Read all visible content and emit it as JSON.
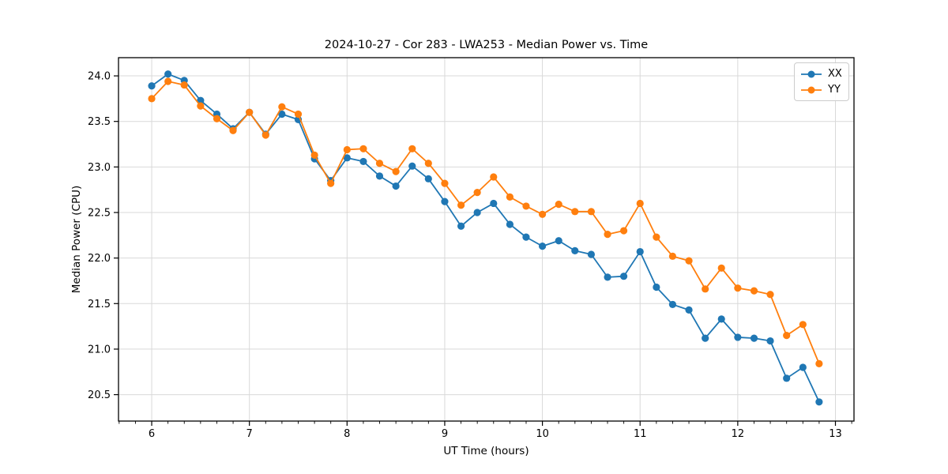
{
  "chart_data": {
    "type": "line",
    "title": "2024-10-27 - Cor 283 - LWA253 - Median Power vs. Time",
    "xlabel": "UT Time (hours)",
    "ylabel": "Median Power (CPU)",
    "xlim": [
      5.66,
      13.19
    ],
    "ylim": [
      20.21,
      24.2
    ],
    "xticks": [
      6,
      7,
      8,
      9,
      10,
      11,
      12,
      13
    ],
    "yticks": [
      20.5,
      21.0,
      21.5,
      22.0,
      22.5,
      23.0,
      23.5,
      24.0
    ],
    "x_minor_step": 0.1666667,
    "grid": true,
    "legend_position": "upper right",
    "x": [
      6.0,
      6.167,
      6.333,
      6.5,
      6.667,
      6.833,
      7.0,
      7.167,
      7.333,
      7.5,
      7.667,
      7.833,
      8.0,
      8.167,
      8.333,
      8.5,
      8.667,
      8.833,
      9.0,
      9.167,
      9.333,
      9.5,
      9.667,
      9.833,
      10.0,
      10.167,
      10.333,
      10.5,
      10.667,
      10.833,
      11.0,
      11.167,
      11.333,
      11.5,
      11.667,
      11.833,
      12.0,
      12.167,
      12.333,
      12.5,
      12.667,
      12.833
    ],
    "series": [
      {
        "name": "XX",
        "color": "#1f77b4",
        "values": [
          23.89,
          24.02,
          23.95,
          23.73,
          23.58,
          23.42,
          23.6,
          23.36,
          23.58,
          23.52,
          23.09,
          22.85,
          23.1,
          23.06,
          22.9,
          22.79,
          23.01,
          22.87,
          22.62,
          22.35,
          22.5,
          22.6,
          22.37,
          22.23,
          22.13,
          22.19,
          22.08,
          22.04,
          21.79,
          21.8,
          22.07,
          21.68,
          21.49,
          21.43,
          21.12,
          21.33,
          21.13,
          21.12,
          21.09,
          20.68,
          20.8,
          20.42
        ]
      },
      {
        "name": "YY",
        "color": "#ff7f0e",
        "values": [
          23.75,
          23.94,
          23.9,
          23.67,
          23.53,
          23.4,
          23.6,
          23.35,
          23.66,
          23.58,
          23.13,
          22.82,
          23.19,
          23.2,
          23.04,
          22.95,
          23.2,
          23.04,
          22.82,
          22.58,
          22.72,
          22.89,
          22.67,
          22.57,
          22.48,
          22.59,
          22.51,
          22.51,
          22.26,
          22.3,
          22.6,
          22.23,
          22.02,
          21.97,
          21.66,
          21.89,
          21.67,
          21.64,
          21.6,
          21.15,
          21.27,
          20.84
        ]
      }
    ]
  },
  "colors": {
    "series_xx": "#1f77b4",
    "series_yy": "#ff7f0e",
    "grid": "#d9d9d9",
    "spine": "#000000",
    "text": "#000000"
  }
}
